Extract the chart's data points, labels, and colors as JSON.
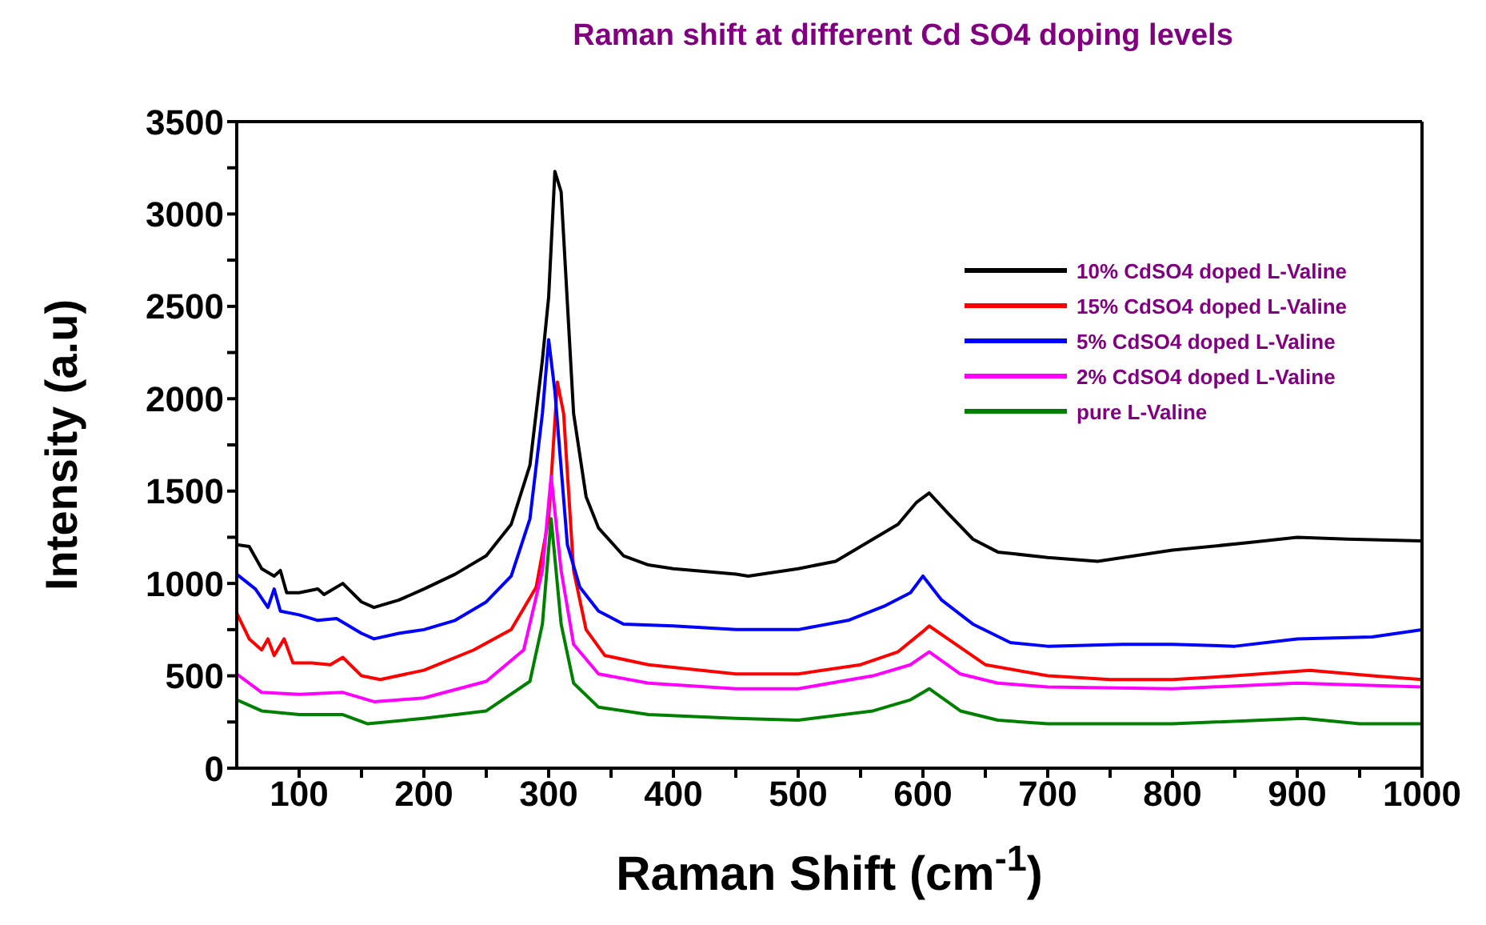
{
  "chart_data": {
    "type": "line",
    "title": "Raman shift at different Cd SO4 doping levels",
    "xlabel": "Raman Shift (cm$^{-1}$)",
    "ylabel": "Intensity (a.u)",
    "xlim": [
      50,
      1000
    ],
    "ylim": [
      0,
      3500
    ],
    "xticks": [
      100,
      {
        "value": 150,
        "label": null
      },
      200,
      {
        "value": 250,
        "label": null
      },
      300,
      {
        "value": 350,
        "label": null
      },
      400,
      {
        "value": 450,
        "label": null
      },
      500,
      {
        "value": 550,
        "label": null
      },
      600,
      {
        "value": 650,
        "label": null
      },
      700,
      {
        "value": 750,
        "label": null
      },
      800,
      {
        "value": 850,
        "label": null
      },
      900,
      {
        "value": 950,
        "label": null
      },
      1000
    ],
    "yticks": [
      0,
      {
        "value": 250,
        "label": null
      },
      500,
      {
        "value": 750,
        "label": null
      },
      1000,
      {
        "value": 1250,
        "label": null
      },
      1500,
      {
        "value": 1750,
        "label": null
      },
      2000,
      {
        "value": 2250,
        "label": null
      },
      2500,
      {
        "value": 2750,
        "label": null
      },
      3000,
      {
        "value": 3250,
        "label": null
      },
      3500
    ],
    "legend": "top right",
    "marker": "none",
    "line_style": "solid",
    "series": [
      {
        "name": "10% CdSO4 doped L-Valine",
        "color": "#000000",
        "x": [
          50,
          60,
          70,
          80,
          85,
          90,
          100,
          115,
          120,
          135,
          150,
          160,
          180,
          200,
          225,
          250,
          270,
          285,
          295,
          300,
          305,
          310,
          320,
          330,
          340,
          360,
          380,
          400,
          450,
          460,
          500,
          530,
          560,
          580,
          595,
          605,
          620,
          640,
          660,
          700,
          740,
          800,
          860,
          900,
          940,
          1000
        ],
        "values": [
          1210,
          1200,
          1080,
          1040,
          1070,
          950,
          950,
          970,
          940,
          1000,
          900,
          870,
          910,
          970,
          1050,
          1150,
          1320,
          1640,
          2210,
          2550,
          3230,
          3120,
          1920,
          1470,
          1300,
          1150,
          1100,
          1080,
          1050,
          1040,
          1080,
          1120,
          1240,
          1320,
          1440,
          1490,
          1380,
          1240,
          1170,
          1140,
          1120,
          1180,
          1220,
          1250,
          1240,
          1230
        ]
      },
      {
        "name": "15% CdSO4 doped L-Valine",
        "color": "#ff0000",
        "x": [
          50,
          60,
          70,
          75,
          80,
          88,
          95,
          110,
          125,
          135,
          150,
          165,
          200,
          240,
          270,
          290,
          300,
          307,
          312,
          320,
          330,
          345,
          380,
          450,
          500,
          550,
          580,
          600,
          605,
          620,
          650,
          700,
          750,
          800,
          850,
          910,
          960,
          1000
        ],
        "values": [
          840,
          700,
          640,
          700,
          610,
          700,
          570,
          570,
          560,
          600,
          500,
          480,
          530,
          640,
          750,
          980,
          1350,
          2090,
          1920,
          1070,
          750,
          610,
          560,
          510,
          510,
          560,
          630,
          740,
          770,
          700,
          560,
          500,
          480,
          480,
          500,
          530,
          500,
          480
        ]
      },
      {
        "name": "5% CdSO4 doped L-Valine",
        "color": "#0000ff",
        "x": [
          50,
          65,
          75,
          80,
          85,
          100,
          115,
          130,
          150,
          160,
          180,
          200,
          225,
          250,
          270,
          285,
          295,
          300,
          305,
          315,
          325,
          340,
          360,
          400,
          450,
          500,
          540,
          570,
          590,
          600,
          615,
          640,
          670,
          700,
          760,
          800,
          850,
          900,
          960,
          1000
        ],
        "values": [
          1050,
          970,
          870,
          970,
          850,
          830,
          800,
          810,
          730,
          700,
          730,
          750,
          800,
          900,
          1040,
          1350,
          1920,
          2320,
          2040,
          1210,
          980,
          850,
          780,
          770,
          750,
          750,
          800,
          880,
          950,
          1040,
          910,
          780,
          680,
          660,
          670,
          670,
          660,
          700,
          710,
          750
        ]
      },
      {
        "name": "2% CdSO4 doped L-Valine",
        "color": "#ff00ff",
        "x": [
          50,
          70,
          100,
          135,
          160,
          200,
          250,
          280,
          295,
          302,
          310,
          320,
          340,
          380,
          450,
          500,
          560,
          590,
          605,
          630,
          660,
          700,
          800,
          900,
          1000
        ],
        "values": [
          510,
          410,
          400,
          410,
          360,
          380,
          470,
          640,
          1070,
          1580,
          1070,
          670,
          510,
          460,
          430,
          430,
          500,
          560,
          630,
          510,
          460,
          440,
          430,
          460,
          440
        ]
      },
      {
        "name": "pure L-Valine",
        "color": "#008000",
        "x": [
          50,
          70,
          100,
          135,
          155,
          200,
          250,
          285,
          295,
          302,
          310,
          320,
          340,
          380,
          450,
          500,
          560,
          590,
          605,
          630,
          660,
          700,
          800,
          905,
          950,
          1000
        ],
        "values": [
          370,
          310,
          290,
          290,
          240,
          270,
          310,
          470,
          780,
          1350,
          780,
          460,
          330,
          290,
          270,
          260,
          310,
          370,
          430,
          310,
          260,
          240,
          240,
          270,
          240,
          240
        ]
      }
    ]
  }
}
